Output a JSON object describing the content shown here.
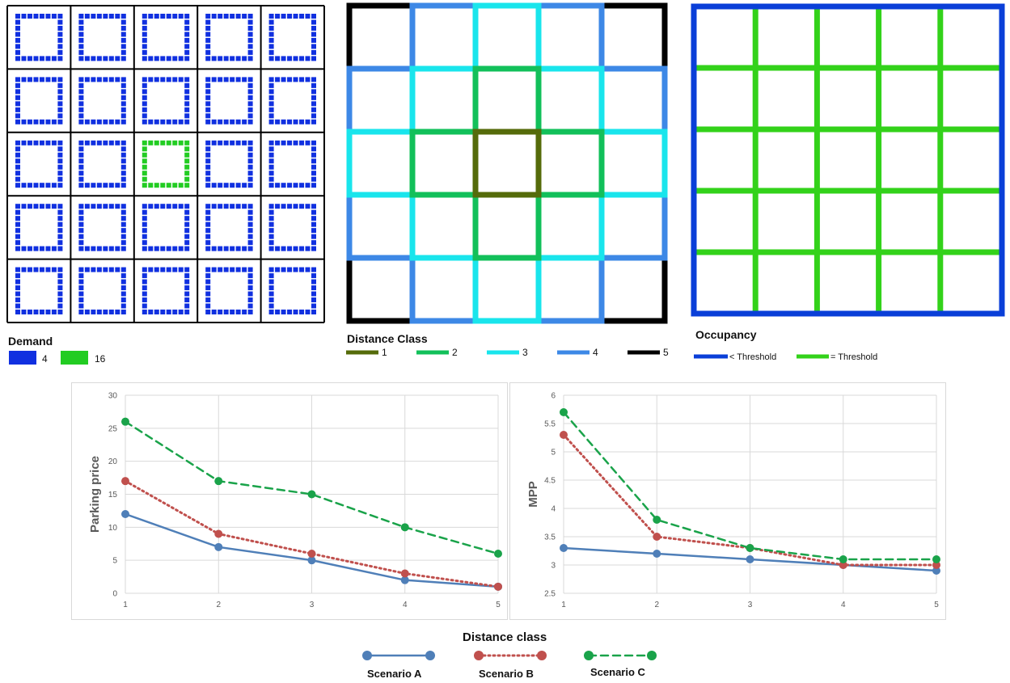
{
  "panels": {
    "demand": {
      "title": "Demand",
      "legend": [
        {
          "label": "4",
          "color": "#1030e0"
        },
        {
          "label": "16",
          "color": "#22cc22"
        }
      ],
      "highlight_cell": {
        "row": 3,
        "col": 3
      }
    },
    "distance_class": {
      "title": "Distance Class",
      "legend": [
        {
          "label": "1",
          "color": "#556b0a"
        },
        {
          "label": "2",
          "color": "#12c05a"
        },
        {
          "label": "3",
          "color": "#19e5ec"
        },
        {
          "label": "4",
          "color": "#3d88e6"
        },
        {
          "label": "5",
          "color": "#000000"
        }
      ]
    },
    "occupancy": {
      "title": "Occupancy",
      "legend": [
        {
          "label": "< Threshold",
          "color": "#0a3fd8"
        },
        {
          "label": "= Threshold",
          "color": "#33d21a"
        }
      ]
    }
  },
  "chart_data": [
    {
      "type": "line",
      "ylabel": "Parking price",
      "x": [
        1,
        2,
        3,
        4,
        5
      ],
      "ylim": [
        0,
        30
      ],
      "yticks": [
        0,
        5,
        10,
        15,
        20,
        25,
        30
      ],
      "grid": true,
      "series": [
        {
          "name": "Scenario A",
          "values": [
            12,
            7,
            5,
            2,
            1
          ],
          "color": "#4f7fb8",
          "style": "solid"
        },
        {
          "name": "Scenario B",
          "values": [
            17,
            9,
            6,
            3,
            1
          ],
          "color": "#c0504d",
          "style": "dotted"
        },
        {
          "name": "Scenario C",
          "values": [
            26,
            17,
            15,
            10,
            6
          ],
          "color": "#1aa34a",
          "style": "dashed"
        }
      ]
    },
    {
      "type": "line",
      "ylabel": "MPP",
      "x": [
        1,
        2,
        3,
        4,
        5
      ],
      "ylim": [
        2.5,
        6
      ],
      "yticks": [
        2.5,
        3,
        3.5,
        4,
        4.5,
        5,
        5.5,
        6
      ],
      "grid": true,
      "series": [
        {
          "name": "Scenario A",
          "values": [
            3.3,
            3.2,
            3.1,
            3.0,
            2.9
          ],
          "color": "#4f7fb8",
          "style": "solid"
        },
        {
          "name": "Scenario B",
          "values": [
            5.3,
            3.5,
            3.3,
            3.0,
            3.0
          ],
          "color": "#c0504d",
          "style": "dotted"
        },
        {
          "name": "Scenario C",
          "values": [
            5.7,
            3.8,
            3.3,
            3.1,
            3.1
          ],
          "color": "#1aa34a",
          "style": "dashed"
        }
      ]
    }
  ],
  "shared": {
    "xlabel": "Distance class",
    "legend": [
      {
        "name": "Scenario A",
        "color": "#4f7fb8",
        "style": "solid"
      },
      {
        "name": "Scenario B",
        "color": "#c0504d",
        "style": "dotted"
      },
      {
        "name": "Scenario C",
        "color": "#1aa34a",
        "style": "dashed"
      }
    ]
  }
}
